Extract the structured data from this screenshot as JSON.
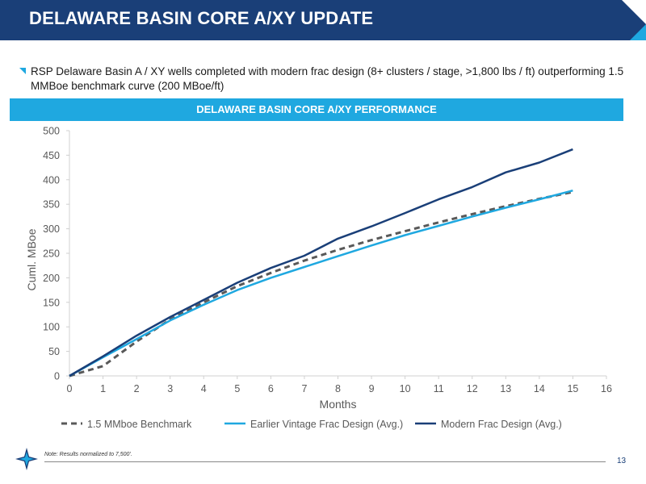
{
  "header": {
    "title": "DELAWARE BASIN CORE A/XY UPDATE"
  },
  "bullet": {
    "text": "RSP Delaware Basin A / XY wells completed with modern frac design (8+ clusters / stage, >1,800 lbs / ft) outperforming 1.5 MMBoe benchmark curve (200 MBoe/ft)"
  },
  "chart_banner": {
    "title": "DELAWARE BASIN CORE A/XY PERFORMANCE"
  },
  "footer": {
    "note": "Note: Results normalized to 7,500'.",
    "page_number": "13"
  },
  "colors": {
    "header_navy": "#1a3f78",
    "accent_blue": "#1fa8e0",
    "benchmark_gray": "#595959",
    "earlier_vintage": "#1fa8e0",
    "modern_frac": "#1a3f78"
  },
  "chart_data": {
    "type": "line",
    "title": "DELAWARE BASIN CORE A/XY PERFORMANCE",
    "xlabel": "Months",
    "ylabel": "Cuml. MBoe",
    "xlim": [
      0,
      16
    ],
    "ylim": [
      0,
      500
    ],
    "x_ticks": [
      0,
      1,
      2,
      3,
      4,
      5,
      6,
      7,
      8,
      9,
      10,
      11,
      12,
      13,
      14,
      15,
      16
    ],
    "y_ticks": [
      0,
      50,
      100,
      150,
      200,
      250,
      300,
      350,
      400,
      450,
      500
    ],
    "grid": false,
    "legend_position": "bottom",
    "series": [
      {
        "name": "1.5 MMboe Benchmark",
        "style": "dashed",
        "color": "#595959",
        "x": [
          0,
          1,
          2,
          3,
          4,
          5,
          6,
          7,
          8,
          9,
          10,
          11,
          12,
          13,
          14,
          15
        ],
        "y": [
          0,
          20,
          70,
          115,
          150,
          183,
          210,
          235,
          257,
          277,
          295,
          313,
          330,
          346,
          361,
          375
        ]
      },
      {
        "name": "Earlier Vintage Frac Design (Avg.)",
        "style": "solid",
        "color": "#1fa8e0",
        "x": [
          0,
          1,
          2,
          3,
          4,
          5,
          6,
          7,
          8,
          9,
          10,
          11,
          12,
          13,
          14,
          15
        ],
        "y": [
          0,
          38,
          75,
          113,
          145,
          175,
          200,
          222,
          244,
          266,
          287,
          306,
          325,
          343,
          360,
          378
        ]
      },
      {
        "name": "Modern Frac Design (Avg.)",
        "style": "solid",
        "color": "#1a3f78",
        "x": [
          0,
          1,
          2,
          3,
          4,
          5,
          6,
          7,
          8,
          9,
          10,
          11,
          12,
          13,
          14,
          15
        ],
        "y": [
          0,
          40,
          82,
          120,
          155,
          190,
          220,
          245,
          280,
          305,
          332,
          360,
          385,
          415,
          435,
          462
        ]
      }
    ]
  }
}
